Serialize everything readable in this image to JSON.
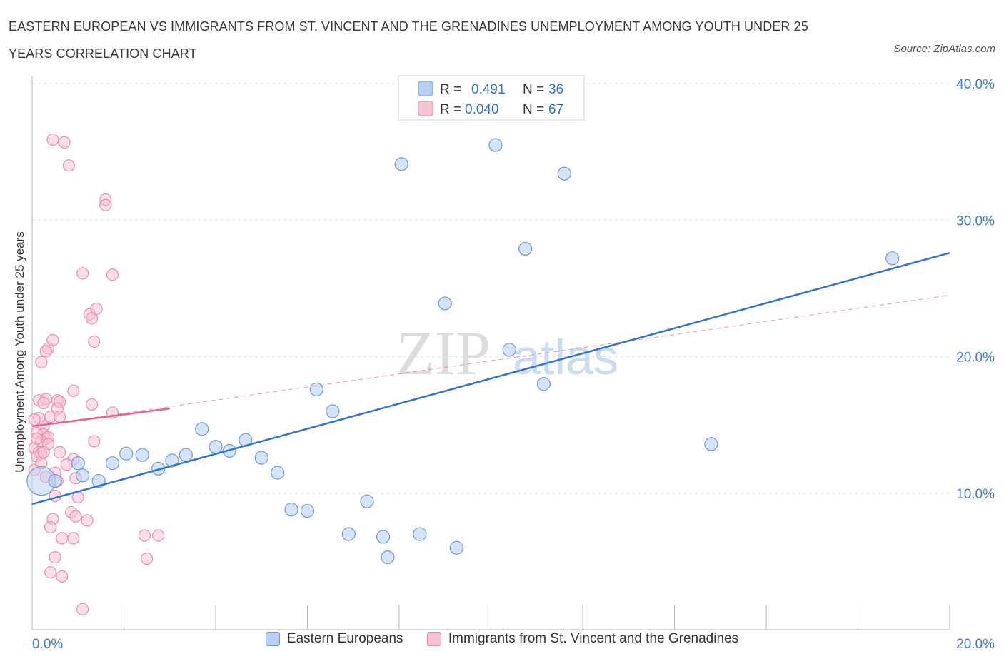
{
  "title": "EASTERN EUROPEAN VS IMMIGRANTS FROM ST. VINCENT AND THE GRENADINES UNEMPLOYMENT AMONG YOUTH UNDER 25 YEARS CORRELATION CHART",
  "source": "Source: ZipAtlas.com",
  "watermark": {
    "zip": "ZIP",
    "atlas": "atlas"
  },
  "stats_box": {
    "rows": [
      {
        "r_label": "R =",
        "r_value": "0.491",
        "n_label": "N =",
        "n_value": "36",
        "series": "blue"
      },
      {
        "r_label": "R =",
        "r_value": "0.040",
        "n_label": "N =",
        "n_value": "67",
        "series": "pink"
      }
    ]
  },
  "legend": {
    "blue_label": "Eastern Europeans",
    "pink_label": "Immigrants from St. Vincent and the Grenadines"
  },
  "colors": {
    "blue_fill": "#b8d0f4",
    "blue_stroke": "#6d9bd9",
    "blue_line": "#2f74d0",
    "pink_fill": "#f7c3d3",
    "pink_stroke": "#ea8fab",
    "pink_line": "#e8628c",
    "axis_text": "#3d7bd6",
    "grid": "#dddddd"
  },
  "chart_data": {
    "type": "scatter",
    "title": "EASTERN EUROPEAN VS IMMIGRANTS FROM ST. VINCENT AND THE GRENADINES UNEMPLOYMENT AMONG YOUTH UNDER 25 YEARS CORRELATION CHART",
    "xlabel": "",
    "ylabel": "Unemployment Among Youth under 25 years",
    "xlim": [
      0,
      20
    ],
    "ylim": [
      0,
      40
    ],
    "x_tick_labels": [
      "0.0%",
      "20.0%"
    ],
    "y_tick_labels": [
      "10.0%",
      "20.0%",
      "30.0%",
      "40.0%"
    ],
    "y_ticks": [
      10,
      20,
      30,
      40
    ],
    "series": [
      {
        "name": "Eastern Europeans",
        "color": "blue",
        "R": 0.491,
        "N": 36,
        "trend": {
          "x0": 0,
          "y0": 9.2,
          "x1": 20,
          "y1": 27.6
        },
        "points": [
          [
            0.2,
            10.9
          ],
          [
            0.5,
            10.9
          ],
          [
            1.0,
            12.2
          ],
          [
            1.1,
            11.3
          ],
          [
            1.45,
            10.9
          ],
          [
            1.75,
            12.2
          ],
          [
            2.05,
            12.9
          ],
          [
            2.4,
            12.8
          ],
          [
            2.75,
            11.8
          ],
          [
            3.05,
            12.4
          ],
          [
            3.35,
            12.8
          ],
          [
            3.7,
            14.7
          ],
          [
            4.0,
            13.4
          ],
          [
            4.3,
            13.1
          ],
          [
            4.65,
            13.9
          ],
          [
            5.0,
            12.6
          ],
          [
            5.35,
            11.5
          ],
          [
            5.65,
            8.8
          ],
          [
            6.0,
            8.7
          ],
          [
            6.2,
            17.6
          ],
          [
            6.55,
            16.0
          ],
          [
            6.9,
            7.0
          ],
          [
            7.3,
            9.4
          ],
          [
            7.65,
            6.8
          ],
          [
            7.75,
            5.3
          ],
          [
            8.05,
            34.1
          ],
          [
            8.45,
            7.0
          ],
          [
            9.0,
            23.9
          ],
          [
            9.25,
            6.0
          ],
          [
            10.1,
            35.5
          ],
          [
            10.4,
            20.5
          ],
          [
            10.75,
            27.9
          ],
          [
            11.15,
            18.0
          ],
          [
            11.6,
            33.4
          ],
          [
            14.8,
            13.6
          ],
          [
            18.75,
            27.2
          ]
        ],
        "large_points": [
          [
            0.2,
            10.9
          ]
        ]
      },
      {
        "name": "Immigrants from St. Vincent and the Grenadines",
        "color": "pink",
        "R": 0.04,
        "N": 67,
        "trend": {
          "x0": 0,
          "y0": 14.9,
          "x1": 3.0,
          "y1": 16.2
        },
        "trend_dashed": {
          "x0": 0,
          "y0": 14.9,
          "x1": 20,
          "y1": 24.5
        },
        "points": [
          [
            0.45,
            35.9
          ],
          [
            0.7,
            35.7
          ],
          [
            0.8,
            34.0
          ],
          [
            1.6,
            31.5
          ],
          [
            1.6,
            31.1
          ],
          [
            1.1,
            26.1
          ],
          [
            1.75,
            26.0
          ],
          [
            1.25,
            23.1
          ],
          [
            1.4,
            23.5
          ],
          [
            1.3,
            22.8
          ],
          [
            1.35,
            21.1
          ],
          [
            0.45,
            21.2
          ],
          [
            0.35,
            20.6
          ],
          [
            0.3,
            20.4
          ],
          [
            0.2,
            19.6
          ],
          [
            0.9,
            17.5
          ],
          [
            0.15,
            16.8
          ],
          [
            0.3,
            16.9
          ],
          [
            0.25,
            16.6
          ],
          [
            0.55,
            16.8
          ],
          [
            0.6,
            16.7
          ],
          [
            0.55,
            16.2
          ],
          [
            1.3,
            16.5
          ],
          [
            1.75,
            15.9
          ],
          [
            0.15,
            15.5
          ],
          [
            0.4,
            15.6
          ],
          [
            0.6,
            15.6
          ],
          [
            0.05,
            15.4
          ],
          [
            0.25,
            14.9
          ],
          [
            0.1,
            14.4
          ],
          [
            0.25,
            14.3
          ],
          [
            0.3,
            14.0
          ],
          [
            0.35,
            14.1
          ],
          [
            0.2,
            13.8
          ],
          [
            0.35,
            13.6
          ],
          [
            0.05,
            13.3
          ],
          [
            0.15,
            13.0
          ],
          [
            0.1,
            12.7
          ],
          [
            0.2,
            12.9
          ],
          [
            0.6,
            13.0
          ],
          [
            0.9,
            12.5
          ],
          [
            0.75,
            12.1
          ],
          [
            0.2,
            12.2
          ],
          [
            0.05,
            11.7
          ],
          [
            0.5,
            11.5
          ],
          [
            0.3,
            11.2
          ],
          [
            0.95,
            11.1
          ],
          [
            0.55,
            10.9
          ],
          [
            0.5,
            9.8
          ],
          [
            1.0,
            9.7
          ],
          [
            1.35,
            13.8
          ],
          [
            0.85,
            8.6
          ],
          [
            0.95,
            8.3
          ],
          [
            1.2,
            8.0
          ],
          [
            0.45,
            8.1
          ],
          [
            0.4,
            7.5
          ],
          [
            0.65,
            6.7
          ],
          [
            0.9,
            6.7
          ],
          [
            2.45,
            6.9
          ],
          [
            2.75,
            6.9
          ],
          [
            0.5,
            5.3
          ],
          [
            2.5,
            5.2
          ],
          [
            0.4,
            4.2
          ],
          [
            0.65,
            3.9
          ],
          [
            1.1,
            1.5
          ],
          [
            0.25,
            13.0
          ],
          [
            0.1,
            14.0
          ]
        ]
      }
    ]
  }
}
